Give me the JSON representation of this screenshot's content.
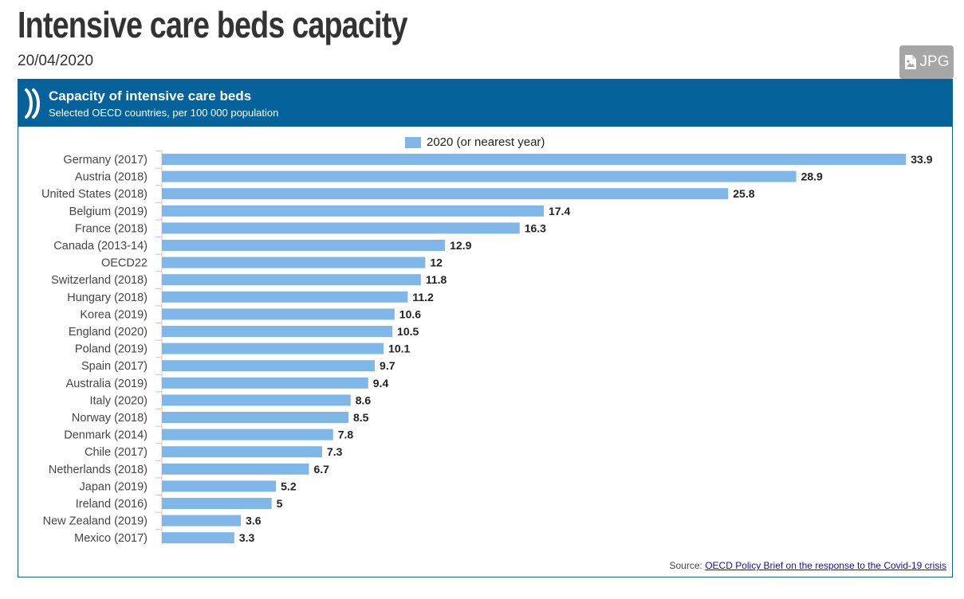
{
  "page": {
    "title": "Intensive care beds capacity",
    "date": "20/04/2020",
    "download_label": "JPG"
  },
  "colors": {
    "header_bg": "#05629a",
    "bar": "#7eb7e8"
  },
  "icons": {
    "download": "image-file-icon",
    "logo": "oecd-logo-icon"
  },
  "chart_header": {
    "title": "Capacity of intensive care beds",
    "subtitle": "Selected OECD countries, per 100 000 population"
  },
  "source": {
    "prefix": "Source: ",
    "link_text": "OECD Policy Brief on the response to the Covid-19 crisis"
  },
  "chart_data": {
    "type": "bar",
    "orientation": "horizontal",
    "categories": [
      "Germany (2017)",
      "Austria (2018)",
      "United States (2018)",
      "Belgium (2019)",
      "France (2018)",
      "Canada (2013-14)",
      "OECD22",
      "Switzerland (2018)",
      "Hungary (2018)",
      "Korea (2019)",
      "England (2020)",
      "Poland (2019)",
      "Spain (2017)",
      "Australia (2019)",
      "Italy (2020)",
      "Norway (2018)",
      "Denmark (2014)",
      "Chile (2017)",
      "Netherlands (2018)",
      "Japan (2019)",
      "Ireland (2016)",
      "New Zealand (2019)",
      "Mexico (2017)"
    ],
    "series": [
      {
        "name": "2020 (or nearest year)",
        "values": [
          33.9,
          28.9,
          25.8,
          17.4,
          16.3,
          12.9,
          12,
          11.8,
          11.2,
          10.6,
          10.5,
          10.1,
          9.7,
          9.4,
          8.6,
          8.5,
          7.8,
          7.3,
          6.7,
          5.2,
          5,
          3.6,
          3.3
        ]
      }
    ],
    "value_labels": [
      "33.9",
      "28.9",
      "25.8",
      "17.4",
      "16.3",
      "12.9",
      "12",
      "11.8",
      "11.2",
      "10.6",
      "10.5",
      "10.1",
      "9.7",
      "9.4",
      "8.6",
      "8.5",
      "7.8",
      "7.3",
      "6.7",
      "5.2",
      "5",
      "3.6",
      "3.3"
    ],
    "xlim": [
      0,
      34
    ],
    "legend_position": "top-center",
    "grid": false
  }
}
